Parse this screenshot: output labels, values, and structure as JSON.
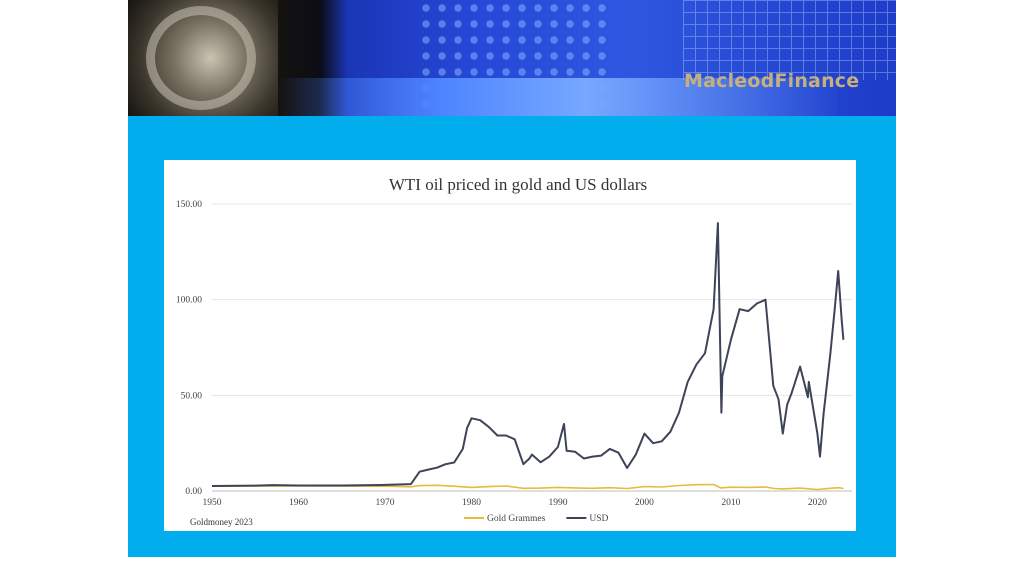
{
  "brand": "MacleodFinance",
  "source_note": "Goldmoney 2023",
  "colors": {
    "usd": "#3d4457",
    "gold": "#e8bb3b",
    "slide_bg": "#02adee",
    "grid": "#e6e6e6"
  },
  "chart_data": {
    "type": "line",
    "title": "WTI oil priced in gold and US dollars",
    "xlabel": "",
    "ylabel": "",
    "xlim": [
      1950,
      2024
    ],
    "ylim": [
      0,
      150
    ],
    "x_ticks": [
      "1950",
      "1960",
      "1970",
      "1980",
      "1990",
      "2000",
      "2010",
      "2020"
    ],
    "y_ticks": [
      "0.00",
      "50.00",
      "100.00",
      "150.00"
    ],
    "grid": "horizontal",
    "legend_position": "bottom",
    "series": [
      {
        "name": "Gold Grammes",
        "color": "#e8bb3b",
        "points": [
          [
            1950,
            2.5
          ],
          [
            1960,
            2.6
          ],
          [
            1970,
            2.5
          ],
          [
            1973,
            2.2
          ],
          [
            1974,
            2.8
          ],
          [
            1976,
            3.0
          ],
          [
            1978,
            2.5
          ],
          [
            1979,
            2.2
          ],
          [
            1980,
            1.9
          ],
          [
            1982,
            2.3
          ],
          [
            1984,
            2.6
          ],
          [
            1986,
            1.4
          ],
          [
            1988,
            1.5
          ],
          [
            1990,
            1.9
          ],
          [
            1992,
            1.6
          ],
          [
            1994,
            1.4
          ],
          [
            1996,
            1.7
          ],
          [
            1998,
            1.3
          ],
          [
            2000,
            2.3
          ],
          [
            2002,
            2.1
          ],
          [
            2004,
            2.9
          ],
          [
            2006,
            3.3
          ],
          [
            2008,
            3.4
          ],
          [
            2008.8,
            1.6
          ],
          [
            2010,
            2.0
          ],
          [
            2012,
            1.9
          ],
          [
            2014,
            2.1
          ],
          [
            2015,
            1.3
          ],
          [
            2016,
            1.1
          ],
          [
            2018,
            1.5
          ],
          [
            2020,
            0.8
          ],
          [
            2021,
            1.2
          ],
          [
            2022,
            1.6
          ],
          [
            2022.5,
            1.7
          ],
          [
            2023,
            1.3
          ]
        ]
      },
      {
        "name": "USD",
        "color": "#3d4457",
        "points": [
          [
            1950,
            2.6
          ],
          [
            1955,
            2.8
          ],
          [
            1957,
            3.1
          ],
          [
            1960,
            2.9
          ],
          [
            1965,
            2.9
          ],
          [
            1970,
            3.2
          ],
          [
            1973,
            3.6
          ],
          [
            1974,
            10.1
          ],
          [
            1975,
            11.2
          ],
          [
            1976,
            12.2
          ],
          [
            1977,
            14.0
          ],
          [
            1978,
            14.9
          ],
          [
            1979,
            22.0
          ],
          [
            1979.5,
            33.0
          ],
          [
            1980,
            38.0
          ],
          [
            1981,
            37.0
          ],
          [
            1982,
            33.5
          ],
          [
            1983,
            29.0
          ],
          [
            1984,
            29.0
          ],
          [
            1985,
            27.0
          ],
          [
            1986,
            14.0
          ],
          [
            1986.7,
            17.0
          ],
          [
            1987,
            19.0
          ],
          [
            1988,
            15.0
          ],
          [
            1989,
            18.0
          ],
          [
            1990,
            23.0
          ],
          [
            1990.7,
            35.0
          ],
          [
            1991,
            21.0
          ],
          [
            1992,
            20.5
          ],
          [
            1993,
            17.0
          ],
          [
            1994,
            18.0
          ],
          [
            1995,
            18.5
          ],
          [
            1996,
            22.0
          ],
          [
            1997,
            20.0
          ],
          [
            1998,
            12.0
          ],
          [
            1999,
            19.0
          ],
          [
            2000,
            30.0
          ],
          [
            2001,
            25.0
          ],
          [
            2002,
            26.0
          ],
          [
            2003,
            31.0
          ],
          [
            2004,
            41.0
          ],
          [
            2005,
            57.0
          ],
          [
            2006,
            66.0
          ],
          [
            2007,
            72.0
          ],
          [
            2008,
            95.0
          ],
          [
            2008.5,
            140.0
          ],
          [
            2008.9,
            41.0
          ],
          [
            2009,
            60.0
          ],
          [
            2010,
            79.0
          ],
          [
            2011,
            95.0
          ],
          [
            2012,
            94.0
          ],
          [
            2013,
            98.0
          ],
          [
            2014,
            100.0
          ],
          [
            2014.9,
            55.0
          ],
          [
            2015.5,
            48.0
          ],
          [
            2016,
            30.0
          ],
          [
            2016.5,
            45.0
          ],
          [
            2017,
            51.0
          ],
          [
            2018,
            65.0
          ],
          [
            2018.9,
            49.0
          ],
          [
            2019,
            57.0
          ],
          [
            2020,
            30.0
          ],
          [
            2020.3,
            18.0
          ],
          [
            2020.7,
            40.0
          ],
          [
            2021,
            52.0
          ],
          [
            2021.5,
            72.0
          ],
          [
            2022,
            95.0
          ],
          [
            2022.4,
            115.0
          ],
          [
            2022.8,
            90.0
          ],
          [
            2023,
            79.0
          ]
        ]
      }
    ]
  }
}
